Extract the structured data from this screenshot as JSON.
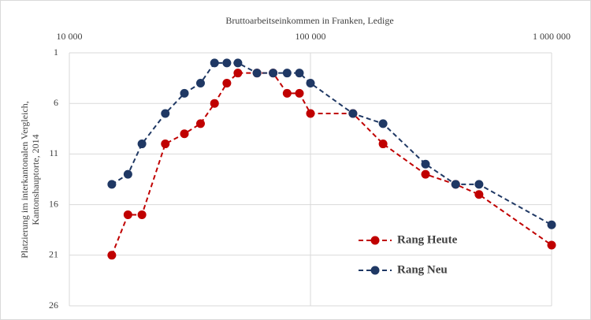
{
  "chart_data": {
    "type": "line",
    "title": "Bruttoarbeitseinkommen in Franken, Ledige",
    "ylabel": [
      "Platzierung im interkantonalen Vergleich,",
      "Kantonshauptorte, 2014"
    ],
    "x": [
      15000,
      17500,
      20000,
      25000,
      30000,
      35000,
      40000,
      45000,
      50000,
      60000,
      70000,
      80000,
      90000,
      100000,
      150000,
      200000,
      300000,
      400000,
      500000,
      1000000
    ],
    "series": [
      {
        "name": "Rang Heute",
        "color": "#c00000",
        "values": [
          21,
          17,
          17,
          10,
          9,
          8,
          6,
          4,
          3,
          3,
          3,
          5,
          5,
          7,
          7,
          10,
          13,
          14,
          15,
          20
        ]
      },
      {
        "name": "Rang Neu",
        "color": "#1f3864",
        "values": [
          14,
          13,
          10,
          7,
          5,
          4,
          2,
          2,
          2,
          3,
          3,
          3,
          3,
          4,
          7,
          8,
          12,
          14,
          14,
          18
        ]
      }
    ],
    "xlim": [
      10000,
      1000000
    ],
    "x_log": true,
    "xticks": [
      {
        "value": 10000,
        "label": "10 000"
      },
      {
        "value": 100000,
        "label": "100 000"
      },
      {
        "value": 1000000,
        "label": "1 000 000"
      }
    ],
    "ylim": [
      1,
      26
    ],
    "y_inverted": true,
    "yticks": [
      1,
      6,
      11,
      16,
      21,
      26
    ],
    "grid": true,
    "legend": "lower right"
  }
}
